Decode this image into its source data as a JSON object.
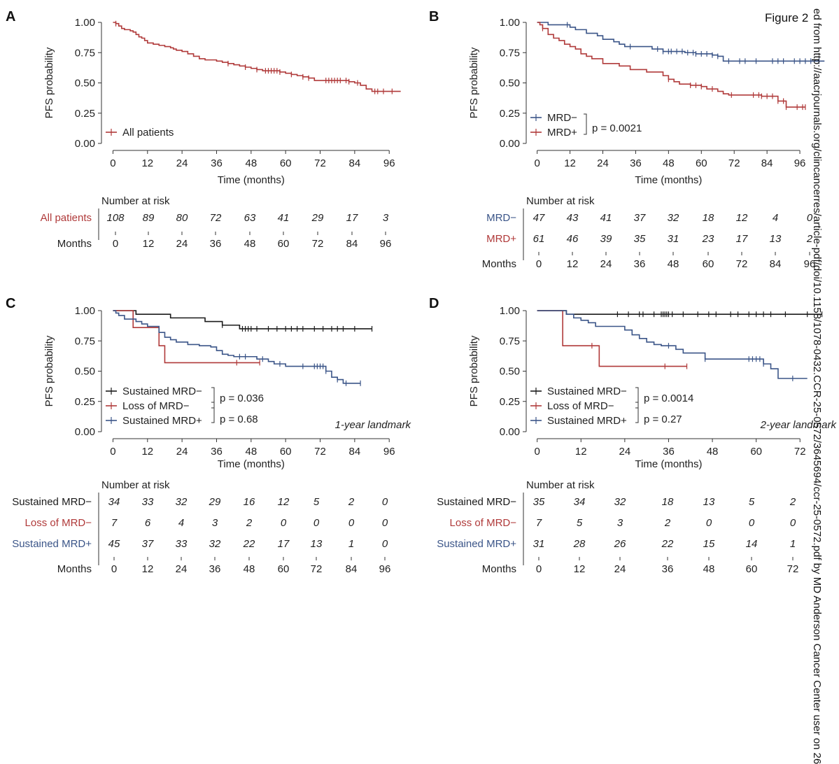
{
  "figure_label": "Figure 2",
  "watermark_text": "ed from http://aacrjournals.org/clincancerres/article-pdf/doi/10.1158/1078-0432.CCR-25-0572/3645694/ccr-25-0572.pdf by MD Anderson Cancer Center user on 26",
  "colors": {
    "red": "#b03a3a",
    "blue": "#3b5588",
    "black": "#1a1a1a"
  },
  "chart_data": [
    {
      "panel": "A",
      "type": "line",
      "subtype": "kaplan-meier",
      "title": "",
      "xlabel": "Time (months)",
      "ylabel": "PFS probability",
      "xlim": [
        -4,
        103
      ],
      "ylim": [
        0,
        1
      ],
      "xticks": [
        "0",
        "12",
        "24",
        "36",
        "48",
        "60",
        "72",
        "84",
        "96"
      ],
      "yticks": [
        "0.00",
        "0.25",
        "0.50",
        "0.75",
        "1.00"
      ],
      "series": [
        {
          "name": "All patients",
          "color": "#b03a3a",
          "x": [
            0,
            1,
            2,
            3,
            4,
            6,
            7,
            8,
            9,
            10,
            11,
            12,
            14,
            16,
            18,
            20,
            21,
            22,
            24,
            26,
            28,
            30,
            32,
            36,
            38,
            40,
            42,
            44,
            46,
            48,
            50,
            52,
            56,
            58,
            60,
            62,
            64,
            66,
            68,
            70,
            74,
            76,
            78,
            82,
            84,
            86,
            88,
            90,
            92,
            94,
            96,
            100
          ],
          "y": [
            1,
            0.99,
            0.97,
            0.95,
            0.94,
            0.93,
            0.92,
            0.9,
            0.88,
            0.87,
            0.85,
            0.83,
            0.82,
            0.81,
            0.8,
            0.79,
            0.78,
            0.77,
            0.76,
            0.74,
            0.72,
            0.7,
            0.69,
            0.68,
            0.67,
            0.66,
            0.65,
            0.64,
            0.63,
            0.62,
            0.61,
            0.6,
            0.6,
            0.59,
            0.58,
            0.57,
            0.56,
            0.55,
            0.54,
            0.52,
            0.52,
            0.52,
            0.52,
            0.51,
            0.5,
            0.48,
            0.45,
            0.43,
            0.43,
            0.43,
            0.43,
            0.43
          ],
          "censor_x": [
            1,
            40,
            46,
            50,
            53,
            54,
            55,
            56,
            57,
            58,
            62,
            66,
            68,
            74,
            75,
            76,
            77,
            78,
            79,
            81,
            82,
            85,
            91,
            92,
            94,
            97
          ]
        }
      ],
      "legend": {
        "entries": [
          "All patients"
        ],
        "placement": "bottom-left"
      },
      "risk_table": {
        "header": "Number at risk",
        "rows": [
          {
            "label": "All patients",
            "color": "#b03a3a",
            "values": [
              "108",
              "89",
              "80",
              "72",
              "63",
              "41",
              "29",
              "17",
              "3"
            ]
          }
        ],
        "months_label": "Months",
        "months": [
          "0",
          "12",
          "24",
          "36",
          "48",
          "60",
          "72",
          "84",
          "96"
        ]
      }
    },
    {
      "panel": "B",
      "type": "line",
      "subtype": "kaplan-meier",
      "title": "",
      "xlabel": "Time (months)",
      "ylabel": "PFS probability",
      "xlim": [
        -4,
        108
      ],
      "ylim": [
        0,
        1
      ],
      "xticks": [
        "0",
        "12",
        "24",
        "36",
        "48",
        "60",
        "72",
        "84",
        "96"
      ],
      "yticks": [
        "0.00",
        "0.25",
        "0.50",
        "0.75",
        "1.00"
      ],
      "series": [
        {
          "name": "MRD−",
          "color": "#3b5588",
          "x": [
            0,
            2,
            4,
            10,
            12,
            14,
            18,
            22,
            24,
            28,
            30,
            32,
            36,
            42,
            46,
            48,
            54,
            58,
            60,
            62,
            64,
            66,
            68,
            72,
            78,
            84,
            88,
            92,
            96,
            100,
            105
          ],
          "y": [
            1,
            1,
            0.98,
            0.98,
            0.96,
            0.94,
            0.91,
            0.89,
            0.86,
            0.84,
            0.82,
            0.8,
            0.8,
            0.78,
            0.76,
            0.76,
            0.75,
            0.74,
            0.74,
            0.74,
            0.73,
            0.72,
            0.68,
            0.68,
            0.68,
            0.68,
            0.68,
            0.68,
            0.68,
            0.68,
            0.68
          ],
          "censor_x": [
            11,
            34,
            44,
            46,
            48,
            49,
            51,
            53,
            55,
            57,
            58,
            60,
            62,
            64,
            66,
            70,
            74,
            76,
            80,
            86,
            88,
            90,
            94,
            96,
            98,
            100,
            103
          ]
        },
        {
          "name": "MRD+",
          "color": "#b03a3a",
          "x": [
            0,
            1,
            2,
            4,
            6,
            8,
            10,
            12,
            14,
            16,
            18,
            20,
            24,
            30,
            34,
            40,
            46,
            48,
            50,
            52,
            56,
            60,
            62,
            66,
            68,
            70,
            76,
            82,
            86,
            88,
            91,
            95,
            98
          ],
          "y": [
            1,
            0.98,
            0.95,
            0.9,
            0.87,
            0.85,
            0.82,
            0.8,
            0.78,
            0.74,
            0.72,
            0.7,
            0.66,
            0.64,
            0.61,
            0.59,
            0.56,
            0.53,
            0.51,
            0.49,
            0.48,
            0.47,
            0.45,
            0.43,
            0.41,
            0.4,
            0.4,
            0.39,
            0.39,
            0.35,
            0.3,
            0.3,
            0.3
          ],
          "censor_x": [
            2,
            48,
            56,
            58,
            60,
            64,
            71,
            79,
            81,
            82,
            84,
            86,
            88,
            90,
            91,
            95,
            97,
            98
          ]
        }
      ],
      "legend": {
        "entries": [
          "MRD−",
          "MRD+"
        ],
        "placement": "bottom-left"
      },
      "pvalues": [
        "p = 0.0021"
      ],
      "risk_table": {
        "header": "Number at risk",
        "rows": [
          {
            "label": "MRD−",
            "color": "#3b5588",
            "values": [
              "47",
              "43",
              "41",
              "37",
              "32",
              "18",
              "12",
              "4",
              "0"
            ]
          },
          {
            "label": "MRD+",
            "color": "#b03a3a",
            "values": [
              "61",
              "46",
              "39",
              "35",
              "31",
              "23",
              "17",
              "13",
              "2"
            ]
          }
        ],
        "months_label": "Months",
        "months": [
          "0",
          "12",
          "24",
          "36",
          "48",
          "60",
          "72",
          "84",
          "96"
        ]
      }
    },
    {
      "panel": "C",
      "type": "line",
      "subtype": "kaplan-meier",
      "title": "",
      "xlabel": "Time (months)",
      "ylabel": "PFS probability",
      "xlim": [
        -4,
        103
      ],
      "ylim": [
        0,
        1
      ],
      "xticks": [
        "0",
        "12",
        "24",
        "36",
        "48",
        "60",
        "72",
        "84",
        "96"
      ],
      "yticks": [
        "0.00",
        "0.25",
        "0.50",
        "0.75",
        "1.00"
      ],
      "annotation": "1-year landmark",
      "series": [
        {
          "name": "Sustained MRD−",
          "color": "#1a1a1a",
          "x": [
            0,
            4,
            8,
            12,
            20,
            28,
            32,
            36,
            38,
            40,
            44,
            48,
            52,
            60,
            70,
            80,
            90
          ],
          "y": [
            1,
            1,
            0.97,
            0.97,
            0.94,
            0.94,
            0.91,
            0.91,
            0.88,
            0.88,
            0.85,
            0.85,
            0.85,
            0.85,
            0.85,
            0.85,
            0.85
          ],
          "censor_x": [
            38,
            45,
            46,
            47,
            48,
            50,
            54,
            57,
            60,
            62,
            64,
            66,
            70,
            73,
            76,
            78,
            80,
            84,
            90
          ]
        },
        {
          "name": "Loss of MRD−",
          "color": "#b03a3a",
          "x": [
            0,
            6,
            7,
            12,
            16,
            17,
            18,
            24,
            30,
            36,
            42,
            48,
            51
          ],
          "y": [
            1,
            1,
            0.86,
            0.86,
            0.71,
            0.71,
            0.57,
            0.57,
            0.57,
            0.57,
            0.57,
            0.57,
            0.57
          ],
          "censor_x": [
            43,
            51
          ]
        },
        {
          "name": "Sustained MRD+",
          "color": "#3b5588",
          "x": [
            0,
            1,
            2,
            4,
            8,
            10,
            12,
            16,
            18,
            20,
            22,
            26,
            30,
            34,
            36,
            38,
            40,
            42,
            46,
            50,
            54,
            56,
            60,
            64,
            68,
            72,
            74,
            76,
            78,
            80,
            86
          ],
          "y": [
            1,
            0.98,
            0.96,
            0.93,
            0.91,
            0.89,
            0.87,
            0.82,
            0.78,
            0.76,
            0.74,
            0.72,
            0.71,
            0.7,
            0.67,
            0.64,
            0.63,
            0.62,
            0.62,
            0.6,
            0.58,
            0.56,
            0.54,
            0.54,
            0.54,
            0.54,
            0.5,
            0.45,
            0.43,
            0.4,
            0.4
          ],
          "censor_x": [
            44,
            46,
            52,
            58,
            66,
            70,
            71,
            72,
            73,
            74,
            78,
            81,
            86
          ]
        }
      ],
      "legend": {
        "entries": [
          "Sustained MRD−",
          "Loss of MRD−",
          "Sustained MRD+"
        ],
        "placement": "bottom-left"
      },
      "pvalues": [
        "p = 0.036",
        "p = 0.68"
      ],
      "risk_table": {
        "header": "Number at risk",
        "rows": [
          {
            "label": "Sustained MRD−",
            "color": "#1a1a1a",
            "values": [
              "34",
              "33",
              "32",
              "29",
              "16",
              "12",
              "5",
              "2",
              "0"
            ]
          },
          {
            "label": "Loss of MRD−",
            "color": "#b03a3a",
            "values": [
              "7",
              "6",
              "4",
              "3",
              "2",
              "0",
              "0",
              "0",
              "0"
            ]
          },
          {
            "label": "Sustained MRD+",
            "color": "#3b5588",
            "values": [
              "45",
              "37",
              "33",
              "32",
              "22",
              "17",
              "13",
              "1",
              "0"
            ]
          }
        ],
        "months_label": "Months",
        "months": [
          "0",
          "12",
          "24",
          "36",
          "48",
          "60",
          "72",
          "84",
          "96"
        ]
      }
    },
    {
      "panel": "D",
      "type": "line",
      "subtype": "kaplan-meier",
      "title": "",
      "xlabel": "Time (months)",
      "ylabel": "PFS probability",
      "xlim": [
        -3,
        80
      ],
      "ylim": [
        0,
        1
      ],
      "xticks": [
        "0",
        "12",
        "24",
        "36",
        "48",
        "60",
        "72"
      ],
      "yticks": [
        "0.00",
        "0.25",
        "0.50",
        "0.75",
        "1.00"
      ],
      "annotation": "2-year landmark",
      "series": [
        {
          "name": "Sustained MRD−",
          "color": "#1a1a1a",
          "x": [
            0,
            4,
            6,
            8,
            78
          ],
          "y": [
            1,
            1,
            1,
            0.97,
            0.97
          ],
          "censor_x": [
            22,
            25,
            28,
            29,
            32,
            34,
            34.5,
            35,
            35.5,
            36,
            37,
            40,
            44,
            47,
            49,
            53,
            55,
            58,
            60,
            62,
            64,
            68,
            74,
            78
          ]
        },
        {
          "name": "Loss of MRD−",
          "color": "#b03a3a",
          "x": [
            0,
            6,
            7,
            16,
            17,
            41
          ],
          "y": [
            1,
            1,
            0.71,
            0.71,
            0.54,
            0.54
          ],
          "censor_x": [
            15,
            35,
            41
          ]
        },
        {
          "name": "Sustained MRD+",
          "color": "#3b5588",
          "x": [
            0,
            6,
            8,
            10,
            12,
            14,
            16,
            20,
            24,
            26,
            28,
            30,
            32,
            34,
            38,
            40,
            46,
            50,
            56,
            60,
            62,
            64,
            66,
            68,
            74
          ],
          "y": [
            1,
            1,
            0.97,
            0.94,
            0.92,
            0.9,
            0.87,
            0.87,
            0.84,
            0.8,
            0.77,
            0.74,
            0.72,
            0.71,
            0.68,
            0.65,
            0.6,
            0.6,
            0.6,
            0.6,
            0.56,
            0.52,
            0.44,
            0.44,
            0.44
          ],
          "censor_x": [
            36,
            46,
            58,
            59,
            60,
            61,
            62,
            70
          ]
        }
      ],
      "legend": {
        "entries": [
          "Sustained MRD−",
          "Loss of MRD−",
          "Sustained MRD+"
        ],
        "placement": "bottom-left"
      },
      "pvalues": [
        "p = 0.0014",
        "p = 0.27"
      ],
      "risk_table": {
        "header": "Number at risk",
        "rows": [
          {
            "label": "Sustained MRD−",
            "color": "#1a1a1a",
            "values": [
              "35",
              "34",
              "32",
              "18",
              "13",
              "5",
              "2"
            ]
          },
          {
            "label": "Loss of MRD−",
            "color": "#b03a3a",
            "values": [
              "7",
              "5",
              "3",
              "2",
              "0",
              "0",
              "0"
            ]
          },
          {
            "label": "Sustained MRD+",
            "color": "#3b5588",
            "values": [
              "31",
              "28",
              "26",
              "22",
              "15",
              "14",
              "1"
            ]
          }
        ],
        "months_label": "Months",
        "months": [
          "0",
          "12",
          "24",
          "36",
          "48",
          "60",
          "72"
        ]
      }
    }
  ],
  "panel_labels": [
    "A",
    "B",
    "C",
    "D"
  ]
}
